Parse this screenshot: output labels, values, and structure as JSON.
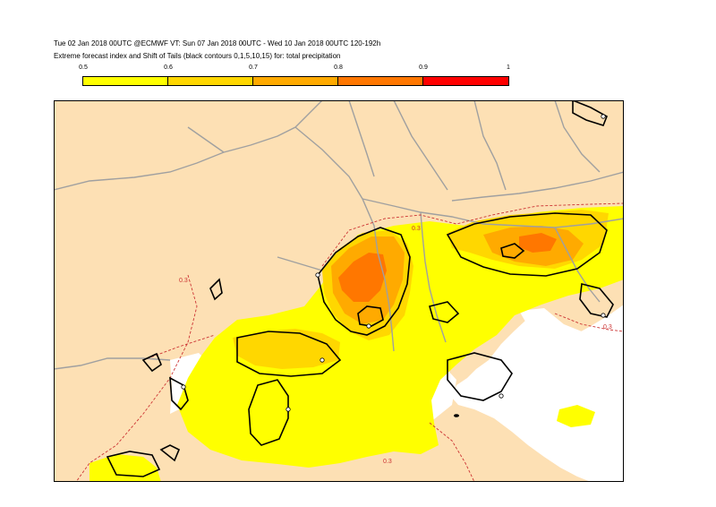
{
  "header": {
    "line1": "Tue 02 Jan 2018 00UTC @ECMWF VT: Sun 07 Jan 2018 00UTC - Wed 10 Jan 2018 00UTC  120-192h",
    "line2": "Extreme forecast index and Shift of Tails (black contours 0,1,5,10,15) for: total precipitation"
  },
  "legend": {
    "ticks": [
      "0.5",
      "0.6",
      "0.7",
      "0.8",
      "0.9",
      "1"
    ],
    "colors": [
      "#ffff00",
      "#ffd700",
      "#ffaa00",
      "#ff7700",
      "#ff0000"
    ]
  },
  "map": {
    "land_color": "#fde0b4",
    "sea_color": "#ffffff",
    "border_color": "#a0a0a0",
    "efi_dashed_color": "#cc3333",
    "contour_labels": [
      "0.3",
      "0.3",
      "0.3",
      "0.3"
    ]
  }
}
